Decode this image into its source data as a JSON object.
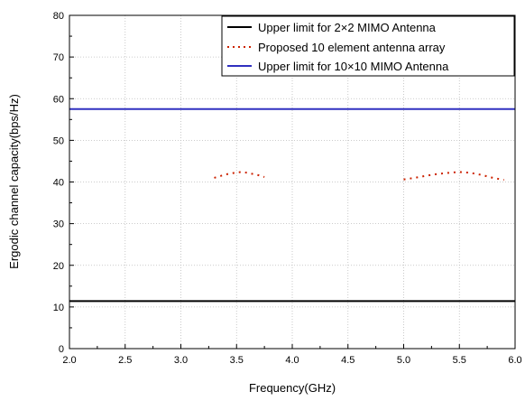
{
  "chart_data": {
    "type": "line",
    "title": "",
    "xlabel": "Frequency(GHz)",
    "ylabel": "Ergodic channel capacity(bps/Hz)",
    "xlim": [
      2.0,
      6.0
    ],
    "ylim": [
      0,
      80
    ],
    "x_ticks": [
      "2.0",
      "2.5",
      "3.0",
      "3.5",
      "4.0",
      "4.5",
      "5.0",
      "5.5",
      "6.0"
    ],
    "y_ticks": [
      "0",
      "10",
      "20",
      "30",
      "40",
      "50",
      "60",
      "70",
      "80"
    ],
    "x_tick_values": [
      2.0,
      2.5,
      3.0,
      3.5,
      4.0,
      4.5,
      5.0,
      5.5,
      6.0
    ],
    "y_tick_values": [
      0,
      10,
      20,
      30,
      40,
      50,
      60,
      70,
      80
    ],
    "grid": true,
    "legend_position": "top-right",
    "series": [
      {
        "name": "Upper limit for 2×2 MIMO Antenna",
        "color": "#000000",
        "style": "solid",
        "segments": [
          {
            "x": [
              2.0,
              6.0
            ],
            "y": [
              11.4,
              11.4
            ]
          }
        ]
      },
      {
        "name": "Proposed 10 element antenna array",
        "color": "#cc2200",
        "style": "dotted",
        "segments": [
          {
            "x": [
              3.3,
              3.4,
              3.5,
              3.55,
              3.6,
              3.7,
              3.75
            ],
            "y": [
              41.0,
              41.8,
              42.3,
              42.4,
              42.2,
              41.6,
              41.2
            ]
          },
          {
            "x": [
              5.0,
              5.1,
              5.2,
              5.3,
              5.4,
              5.5,
              5.6,
              5.7,
              5.8,
              5.9
            ],
            "y": [
              40.6,
              41.0,
              41.5,
              41.9,
              42.2,
              42.4,
              42.2,
              41.7,
              41.0,
              40.5
            ]
          }
        ]
      },
      {
        "name": "Upper limit for 10×10 MIMO Antenna",
        "color": "#3030c0",
        "style": "solid",
        "segments": [
          {
            "x": [
              2.0,
              6.0
            ],
            "y": [
              57.5,
              57.5
            ]
          }
        ]
      }
    ]
  }
}
